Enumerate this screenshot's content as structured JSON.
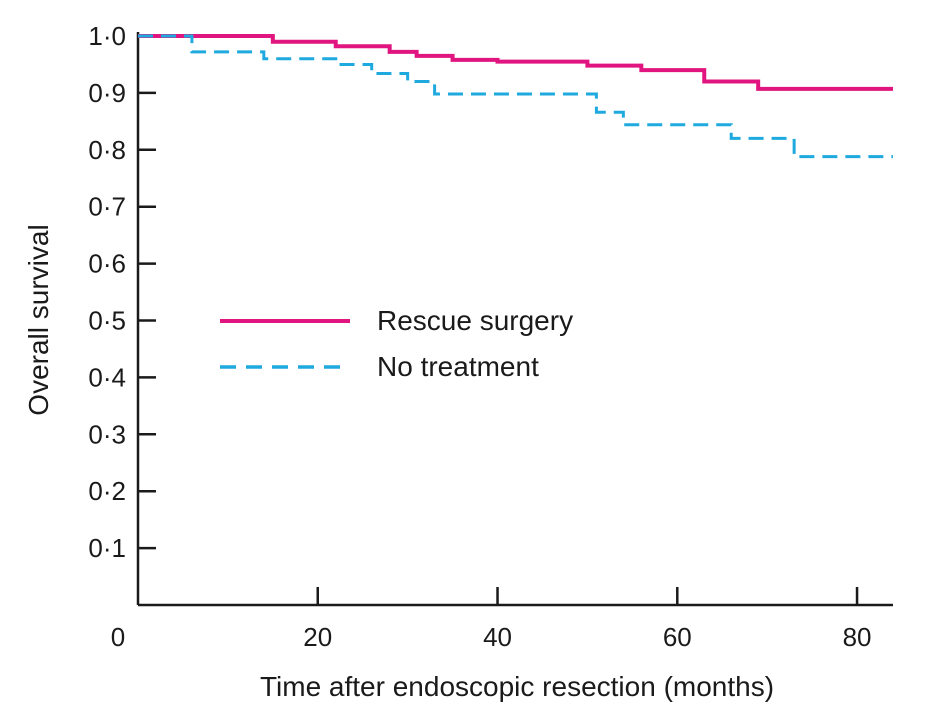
{
  "chart_data": {
    "type": "line",
    "title": "",
    "xlabel": "Time after endoscopic resection (months)",
    "ylabel": "Overall survival",
    "xlim": [
      0,
      84
    ],
    "ylim": [
      0,
      1.0
    ],
    "x_ticks": [
      0,
      20,
      40,
      60,
      80
    ],
    "x_tick_labels": [
      "0",
      "20",
      "40",
      "60",
      "80"
    ],
    "y_ticks": [
      0.1,
      0.2,
      0.3,
      0.4,
      0.5,
      0.6,
      0.7,
      0.8,
      0.9,
      1.0
    ],
    "y_tick_labels": [
      "0·1",
      "0·2",
      "0·3",
      "0·4",
      "0·5",
      "0·6",
      "0·7",
      "0·8",
      "0·9",
      "1·0"
    ],
    "grid": false,
    "legend_position": "center-left",
    "series": [
      {
        "name": "Rescue surgery",
        "color": "#e0157f",
        "style": "solid",
        "step": true,
        "points": [
          [
            0,
            1.0
          ],
          [
            15,
            0.99
          ],
          [
            22,
            0.982
          ],
          [
            28,
            0.972
          ],
          [
            31,
            0.965
          ],
          [
            35,
            0.958
          ],
          [
            40,
            0.955
          ],
          [
            50,
            0.948
          ],
          [
            56,
            0.94
          ],
          [
            63,
            0.92
          ],
          [
            69,
            0.907
          ],
          [
            84,
            0.907
          ]
        ]
      },
      {
        "name": "No treatment",
        "color": "#1ea9df",
        "style": "dashed",
        "step": true,
        "points": [
          [
            0,
            1.0
          ],
          [
            6,
            0.972
          ],
          [
            14,
            0.96
          ],
          [
            22,
            0.95
          ],
          [
            26,
            0.934
          ],
          [
            30,
            0.92
          ],
          [
            33,
            0.898
          ],
          [
            51,
            0.866
          ],
          [
            54,
            0.844
          ],
          [
            66,
            0.82
          ],
          [
            73,
            0.788
          ],
          [
            84,
            0.788
          ]
        ]
      }
    ]
  }
}
